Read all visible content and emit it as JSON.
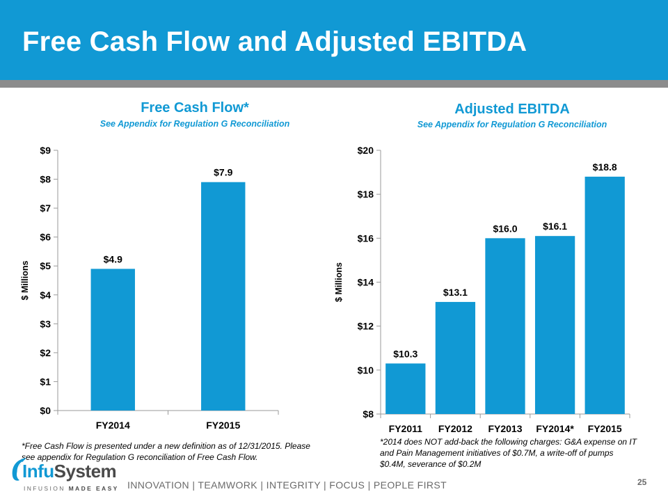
{
  "header": {
    "title": "Free Cash Flow and Adjusted EBITDA"
  },
  "colors": {
    "brand": "#1199d4",
    "bar": "#1199d4",
    "grey": "#8c8c8c"
  },
  "chart_data": [
    {
      "type": "bar",
      "title": "Free Cash Flow*",
      "subtitle": "See Appendix for Regulation G Reconciliation",
      "categories": [
        "FY2014",
        "FY2015"
      ],
      "values": [
        4.9,
        7.9
      ],
      "value_labels": [
        "$4.9",
        "$7.9"
      ],
      "ylabel": "$ Millions",
      "xlabel": "",
      "ylim": [
        0,
        9
      ],
      "yticks": [
        0,
        1,
        2,
        3,
        4,
        5,
        6,
        7,
        8,
        9
      ],
      "ytick_labels": [
        "$0",
        "$1",
        "$2",
        "$3",
        "$4",
        "$5",
        "$6",
        "$7",
        "$8",
        "$9"
      ],
      "grid": false
    },
    {
      "type": "bar",
      "title": "Adjusted EBITDA",
      "subtitle": "See Appendix for Regulation G Reconciliation",
      "categories": [
        "FY2011",
        "FY2012",
        "FY2013",
        "FY2014*",
        "FY2015"
      ],
      "values": [
        10.3,
        13.1,
        16.0,
        16.1,
        18.8
      ],
      "value_labels": [
        "$10.3",
        "$13.1",
        "$16.0",
        "$16.1",
        "$18.8"
      ],
      "ylabel": "$ Millions",
      "xlabel": "",
      "ylim": [
        8,
        20
      ],
      "yticks": [
        8,
        10,
        12,
        14,
        16,
        18,
        20
      ],
      "ytick_labels": [
        "$8",
        "$10",
        "$12",
        "$14",
        "$16",
        "$18",
        "$20"
      ],
      "grid": false
    }
  ],
  "footnotes": {
    "left_line1": "*Free Cash Flow is presented under a new definition as of 12/31/2015.  Please",
    "left_line2": "see appendix for Regulation G reconciliation of Free Cash Flow.",
    "right_line1": "*2014 does NOT add-back the following charges: G&A expense on IT",
    "right_line2": "and Pain Management initiatives of $0.7M, a write-off of pumps",
    "right_line3": "$0.4M, severance of $0.2M"
  },
  "logo": {
    "word_prefix": "Infu",
    "word_suffix": "System",
    "tag_prefix": "INFUSION ",
    "tag_suffix": "MADE EASY"
  },
  "footer": {
    "tagline": "INNOVATION  |  TEAMWORK  |  INTEGRITY  |  FOCUS  |  PEOPLE FIRST",
    "page_number": "25"
  }
}
